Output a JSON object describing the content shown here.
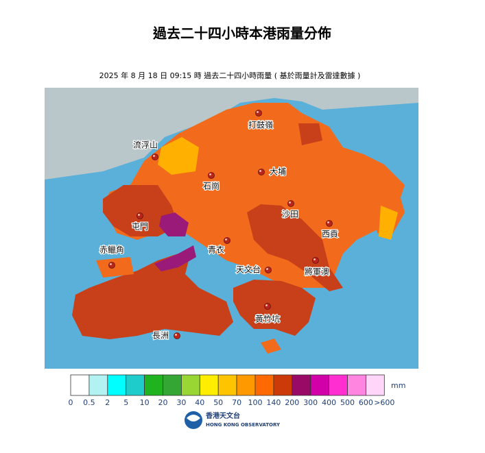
{
  "header": {
    "title": "過去二十四小時本港雨量分佈",
    "subtitle": "2025 年 8 月 18 日 09:15 時 過去二十四小時雨量 ( 基於雨量計及雷達數據 )"
  },
  "map": {
    "places": [
      "打鼓嶺",
      "流浮山",
      "大埔",
      "石崗",
      "屯門",
      "沙田",
      "西貢",
      "青衣",
      "赤鱲角",
      "天文台",
      "將軍澳",
      "黃竹坑",
      "長洲"
    ]
  },
  "legend": {
    "colors": [
      "#ffffff",
      "#b2f2f2",
      "#00ffff",
      "#1fcccc",
      "#1fb31f",
      "#33a633",
      "#9ad633",
      "#ffee00",
      "#ffc400",
      "#ff9900",
      "#ff6a00",
      "#cc3a0a",
      "#990a66",
      "#d100a8",
      "#ff2ed0",
      "#ff85e0",
      "#ffd6fa"
    ],
    "labels": [
      "0",
      "0.5",
      "2",
      "5",
      "10",
      "20",
      "30",
      "40",
      "50",
      "70",
      "100",
      "140",
      "200",
      "300",
      "400",
      "500",
      "600",
      ">600"
    ],
    "unit": "mm"
  },
  "logo": {
    "name_zh": "香港天文台",
    "name_en": "HONG KONG OBSERVATORY"
  }
}
